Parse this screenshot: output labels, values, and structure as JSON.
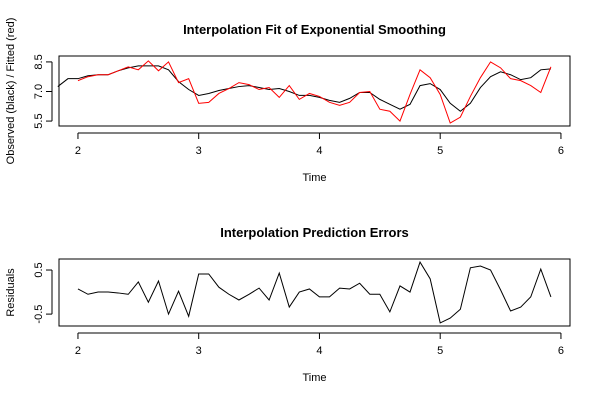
{
  "chart_data": [
    {
      "type": "line",
      "title": "Interpolation Fit of Exponential Smoothing",
      "xlabel": "Time",
      "ylabel": "Observed (black) / Fitted (red)",
      "x": [
        1.833,
        1.917,
        2,
        2.083,
        2.167,
        2.25,
        2.333,
        2.417,
        2.5,
        2.583,
        2.667,
        2.75,
        2.833,
        2.917,
        3,
        3.083,
        3.167,
        3.25,
        3.333,
        3.417,
        3.5,
        3.583,
        3.667,
        3.75,
        3.833,
        3.917,
        4,
        4.083,
        4.167,
        4.25,
        4.333,
        4.417,
        4.5,
        4.583,
        4.667,
        4.75,
        4.833,
        4.917,
        5,
        5.083,
        5.167,
        5.25,
        5.333,
        5.417,
        5.5,
        5.583,
        5.667,
        5.75,
        5.833,
        5.917
      ],
      "series": [
        {
          "color": "#000000",
          "values": [
            7.25,
            7.65,
            7.65,
            7.8,
            7.85,
            7.85,
            8.05,
            8.2,
            8.3,
            8.3,
            8.3,
            8.1,
            7.5,
            7.1,
            6.8,
            6.9,
            7.05,
            7.15,
            7.25,
            7.3,
            7.2,
            7.1,
            7.15,
            7.0,
            6.8,
            6.8,
            6.7,
            6.55,
            6.45,
            6.65,
            6.95,
            6.95,
            6.6,
            6.35,
            6.1,
            6.35,
            7.3,
            7.4,
            7.1,
            6.4,
            6.0,
            6.4,
            7.2,
            7.75,
            8.0,
            7.85,
            7.6,
            7.7,
            8.1,
            8.15
          ]
        },
        {
          "color": "#ff0000",
          "values": [
            null,
            null,
            7.55,
            7.75,
            7.85,
            7.85,
            8.05,
            8.25,
            8.1,
            8.55,
            8.05,
            8.5,
            7.45,
            7.65,
            6.4,
            6.45,
            6.9,
            7.15,
            7.45,
            7.35,
            7.1,
            7.2,
            6.7,
            7.3,
            6.6,
            6.9,
            6.75,
            6.45,
            6.3,
            6.45,
            6.95,
            7.0,
            6.1,
            6.0,
            5.5,
            6.85,
            8.1,
            7.7,
            6.85,
            5.4,
            5.7,
            6.75,
            7.7,
            8.5,
            8.2,
            7.65,
            7.55,
            7.3,
            6.95,
            8.25
          ]
        }
      ],
      "xlim": [
        1.843,
        6.075
      ],
      "ylim": [
        5.25,
        8.8
      ],
      "xticks": [
        2,
        3,
        4,
        5,
        6
      ],
      "yticks": [
        5.5,
        {
          "value": 7,
          "label": "7.0"
        },
        8.5
      ]
    },
    {
      "type": "line",
      "title": "Interpolation Prediction Errors",
      "xlabel": "Time",
      "ylabel": "Residuals",
      "x": [
        2,
        2.083,
        2.167,
        2.25,
        2.333,
        2.417,
        2.5,
        2.583,
        2.667,
        2.75,
        2.833,
        2.917,
        3,
        3.083,
        3.167,
        3.25,
        3.333,
        3.417,
        3.5,
        3.583,
        3.667,
        3.75,
        3.833,
        3.917,
        4,
        4.083,
        4.167,
        4.25,
        4.333,
        4.417,
        4.5,
        4.583,
        4.667,
        4.75,
        4.833,
        4.917,
        5,
        5.083,
        5.167,
        5.25,
        5.333,
        5.417,
        5.5,
        5.583,
        5.667,
        5.75,
        5.833,
        5.917
      ],
      "series": [
        {
          "color": "#000000",
          "values": [
            0.07,
            -0.05,
            0,
            0,
            -0.02,
            -0.05,
            0.23,
            -0.23,
            0.25,
            -0.5,
            0.02,
            -0.55,
            0.41,
            0.41,
            0.11,
            -0.05,
            -0.18,
            -0.05,
            0.09,
            -0.18,
            0.43,
            -0.34,
            0,
            0.07,
            -0.11,
            -0.11,
            0.09,
            0.07,
            0.2,
            -0.05,
            -0.05,
            -0.45,
            0.14,
            0,
            0.68,
            0.3,
            -0.7,
            -0.59,
            -0.39,
            0.55,
            0.59,
            0.5,
            0.05,
            -0.43,
            -0.34,
            -0.11,
            0.52,
            -0.11
          ]
        }
      ],
      "xlim": [
        1.843,
        6.075
      ],
      "ylim": [
        -0.77,
        0.75
      ],
      "xticks": [
        2,
        3,
        4,
        5,
        6
      ],
      "yticks": [
        -0.5,
        0.5
      ]
    }
  ]
}
